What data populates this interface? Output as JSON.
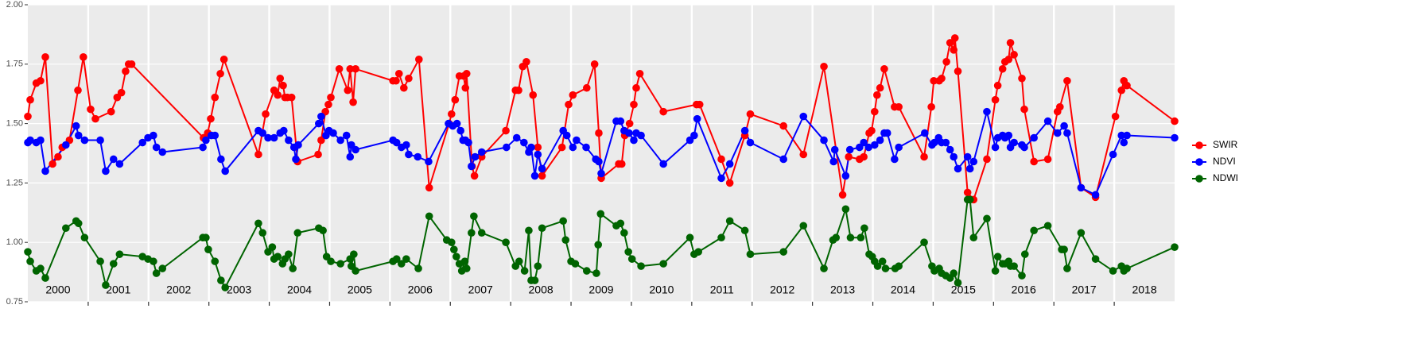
{
  "chart_data": {
    "type": "line",
    "legend": "right",
    "grid": true,
    "background": "#ebebeb",
    "xlim": [
      2000,
      2019
    ],
    "xticks": [
      {
        "value": 2000.5,
        "label": "2000"
      },
      {
        "value": 2001.5,
        "label": "2001"
      },
      {
        "value": 2002.5,
        "label": "2002"
      },
      {
        "value": 2003.5,
        "label": "2003"
      },
      {
        "value": 2004.5,
        "label": "2004"
      },
      {
        "value": 2005.5,
        "label": "2005"
      },
      {
        "value": 2006.5,
        "label": "2006"
      },
      {
        "value": 2007.5,
        "label": "2007"
      },
      {
        "value": 2008.5,
        "label": "2008"
      },
      {
        "value": 2009.5,
        "label": "2009"
      },
      {
        "value": 2010.5,
        "label": "2010"
      },
      {
        "value": 2011.5,
        "label": "2011"
      },
      {
        "value": 2012.5,
        "label": "2012"
      },
      {
        "value": 2013.5,
        "label": "2013"
      },
      {
        "value": 2014.5,
        "label": "2014"
      },
      {
        "value": 2015.5,
        "label": "2015"
      },
      {
        "value": 2016.5,
        "label": "2016"
      },
      {
        "value": 2017.5,
        "label": "2017"
      },
      {
        "value": 2018.5,
        "label": "2018"
      }
    ],
    "xgrid": [
      2001,
      2002,
      2003,
      2004,
      2005,
      2006,
      2007,
      2008,
      2009,
      2010,
      2011,
      2012,
      2013,
      2014,
      2015,
      2016,
      2017,
      2018
    ],
    "ylim": [
      0.75,
      2.0
    ],
    "yticks": [
      0.75,
      {
        "value": 1,
        "label": "1.00"
      },
      1.25,
      {
        "value": 1.5,
        "label": "1.50"
      },
      1.75,
      {
        "value": 2,
        "label": "2.00"
      }
    ],
    "series": [
      {
        "name": "SWIR",
        "color": "#ff0000",
        "x": [
          2000.0,
          2000.04,
          2000.14,
          2000.21,
          2000.29,
          2000.41,
          2000.5,
          2000.57,
          2000.69,
          2000.83,
          2000.92,
          2001.04,
          2001.12,
          2001.38,
          2001.48,
          2001.55,
          2001.62,
          2001.67,
          2001.72,
          2002.91,
          2002.98,
          2003.03,
          2003.1,
          2003.19,
          2003.25,
          2003.82,
          2003.94,
          2004.08,
          2004.14,
          2004.18,
          2004.23,
          2004.26,
          2004.3,
          2004.37,
          2004.47,
          2004.81,
          2004.86,
          2004.93,
          2004.98,
          2005.02,
          2005.16,
          2005.3,
          2005.34,
          2005.39,
          2005.43,
          2006.05,
          2006.1,
          2006.15,
          2006.23,
          2006.31,
          2006.48,
          2006.65,
          2006.98,
          2007.02,
          2007.08,
          2007.15,
          2007.22,
          2007.25,
          2007.27,
          2007.36,
          2007.4,
          2007.52,
          2007.92,
          2008.08,
          2008.13,
          2008.2,
          2008.26,
          2008.37,
          2008.45,
          2008.52,
          2008.85,
          2008.96,
          2009.03,
          2009.26,
          2009.39,
          2009.46,
          2009.5,
          2009.79,
          2009.84,
          2009.89,
          2009.97,
          2010.04,
          2010.08,
          2010.14,
          2010.53,
          2011.08,
          2011.13,
          2011.49,
          2011.63,
          2011.88,
          2011.97,
          2012.52,
          2012.85,
          2013.19,
          2013.5,
          2013.6,
          2013.78,
          2013.85,
          2013.94,
          2013.98,
          2014.03,
          2014.07,
          2014.12,
          2014.19,
          2014.36,
          2014.43,
          2014.85,
          2014.97,
          2015.01,
          2015.1,
          2015.14,
          2015.22,
          2015.28,
          2015.34,
          2015.36,
          2015.41,
          2015.57,
          2015.67,
          2015.89,
          2016.03,
          2016.07,
          2016.15,
          2016.19,
          2016.25,
          2016.28,
          2016.34,
          2016.47,
          2016.51,
          2016.67,
          2016.9,
          2017.06,
          2017.1,
          2017.22,
          2017.45,
          2017.69,
          2018.02,
          2018.12,
          2018.16,
          2018.21,
          2019.0
        ],
        "values": [
          1.53,
          1.6,
          1.67,
          1.68,
          1.78,
          1.33,
          1.36,
          1.4,
          1.43,
          1.64,
          1.78,
          1.56,
          1.52,
          1.55,
          1.61,
          1.63,
          1.72,
          1.75,
          1.75,
          1.44,
          1.46,
          1.52,
          1.61,
          1.71,
          1.77,
          1.37,
          1.54,
          1.64,
          1.62,
          1.69,
          1.66,
          1.61,
          1.61,
          1.61,
          1.34,
          1.37,
          1.43,
          1.55,
          1.58,
          1.61,
          1.73,
          1.64,
          1.73,
          1.59,
          1.73,
          1.68,
          1.68,
          1.71,
          1.65,
          1.69,
          1.77,
          1.23,
          1.5,
          1.54,
          1.6,
          1.7,
          1.7,
          1.65,
          1.71,
          1.32,
          1.28,
          1.36,
          1.47,
          1.64,
          1.64,
          1.74,
          1.76,
          1.62,
          1.4,
          1.28,
          1.4,
          1.58,
          1.62,
          1.65,
          1.75,
          1.46,
          1.27,
          1.33,
          1.33,
          1.45,
          1.5,
          1.58,
          1.65,
          1.71,
          1.55,
          1.58,
          1.58,
          1.35,
          1.25,
          1.45,
          1.54,
          1.49,
          1.37,
          1.74,
          1.2,
          1.36,
          1.35,
          1.36,
          1.46,
          1.47,
          1.55,
          1.62,
          1.65,
          1.73,
          1.57,
          1.57,
          1.36,
          1.57,
          1.68,
          1.68,
          1.69,
          1.76,
          1.84,
          1.81,
          1.86,
          1.72,
          1.21,
          1.18,
          1.35,
          1.6,
          1.66,
          1.73,
          1.76,
          1.77,
          1.84,
          1.79,
          1.69,
          1.56,
          1.34,
          1.35,
          1.55,
          1.57,
          1.68,
          1.23,
          1.19,
          1.53,
          1.64,
          1.68,
          1.66,
          1.51
        ]
      },
      {
        "name": "NDVI",
        "color": "#0000ff",
        "x": [
          2000.0,
          2000.04,
          2000.14,
          2000.21,
          2000.29,
          2000.63,
          2000.8,
          2000.84,
          2000.94,
          2001.2,
          2001.29,
          2001.42,
          2001.52,
          2001.9,
          2001.99,
          2002.08,
          2002.13,
          2002.23,
          2002.9,
          2002.95,
          2003.04,
          2003.1,
          2003.2,
          2003.27,
          2003.82,
          2003.89,
          2003.98,
          2004.08,
          2004.18,
          2004.24,
          2004.32,
          2004.41,
          2004.44,
          2004.48,
          2004.82,
          2004.86,
          2004.94,
          2004.99,
          2005.06,
          2005.18,
          2005.28,
          2005.34,
          2005.36,
          2005.43,
          2006.05,
          2006.11,
          2006.19,
          2006.27,
          2006.31,
          2006.46,
          2006.64,
          2006.97,
          2007.04,
          2007.11,
          2007.17,
          2007.21,
          2007.25,
          2007.3,
          2007.35,
          2007.41,
          2007.52,
          2007.93,
          2008.1,
          2008.22,
          2008.3,
          2008.34,
          2008.4,
          2008.45,
          2008.52,
          2008.87,
          2008.93,
          2009.03,
          2009.09,
          2009.25,
          2009.41,
          2009.46,
          2009.5,
          2009.75,
          2009.82,
          2009.88,
          2009.96,
          2010.04,
          2010.08,
          2010.16,
          2010.53,
          2010.97,
          2011.04,
          2011.09,
          2011.49,
          2011.63,
          2011.88,
          2011.97,
          2012.52,
          2012.85,
          2013.19,
          2013.35,
          2013.37,
          2013.55,
          2013.62,
          2013.78,
          2013.85,
          2013.93,
          2014.03,
          2014.12,
          2014.19,
          2014.24,
          2014.36,
          2014.43,
          2014.86,
          2014.98,
          2015.02,
          2015.09,
          2015.14,
          2015.21,
          2015.28,
          2015.34,
          2015.41,
          2015.57,
          2015.61,
          2015.67,
          2015.89,
          2016.03,
          2016.07,
          2016.15,
          2016.19,
          2016.25,
          2016.28,
          2016.34,
          2016.47,
          2016.51,
          2016.67,
          2016.9,
          2017.06,
          2017.17,
          2017.22,
          2017.45,
          2017.69,
          2017.98,
          2018.12,
          2018.16,
          2018.21,
          2019.0
        ],
        "values": [
          1.42,
          1.43,
          1.42,
          1.43,
          1.3,
          1.41,
          1.49,
          1.45,
          1.43,
          1.43,
          1.3,
          1.35,
          1.33,
          1.42,
          1.44,
          1.45,
          1.4,
          1.38,
          1.4,
          1.43,
          1.45,
          1.45,
          1.35,
          1.3,
          1.47,
          1.46,
          1.44,
          1.44,
          1.46,
          1.47,
          1.43,
          1.4,
          1.35,
          1.41,
          1.5,
          1.53,
          1.45,
          1.47,
          1.46,
          1.43,
          1.45,
          1.36,
          1.41,
          1.39,
          1.43,
          1.42,
          1.4,
          1.41,
          1.37,
          1.36,
          1.34,
          1.5,
          1.49,
          1.5,
          1.47,
          1.43,
          1.43,
          1.42,
          1.32,
          1.36,
          1.38,
          1.4,
          1.44,
          1.42,
          1.38,
          1.4,
          1.28,
          1.37,
          1.31,
          1.47,
          1.45,
          1.4,
          1.43,
          1.4,
          1.35,
          1.34,
          1.29,
          1.51,
          1.51,
          1.47,
          1.46,
          1.43,
          1.46,
          1.45,
          1.33,
          1.43,
          1.45,
          1.52,
          1.27,
          1.33,
          1.47,
          1.42,
          1.35,
          1.53,
          1.43,
          1.34,
          1.39,
          1.28,
          1.39,
          1.4,
          1.42,
          1.4,
          1.41,
          1.43,
          1.46,
          1.46,
          1.35,
          1.4,
          1.46,
          1.41,
          1.42,
          1.44,
          1.42,
          1.42,
          1.39,
          1.36,
          1.31,
          1.36,
          1.31,
          1.34,
          1.55,
          1.4,
          1.44,
          1.45,
          1.44,
          1.45,
          1.4,
          1.42,
          1.41,
          1.4,
          1.44,
          1.51,
          1.46,
          1.49,
          1.46,
          1.23,
          1.2,
          1.37,
          1.45,
          1.42,
          1.45,
          1.44
        ]
      },
      {
        "name": "NDWI",
        "color": "#006400",
        "x": [
          2000.0,
          2000.04,
          2000.14,
          2000.21,
          2000.29,
          2000.63,
          2000.8,
          2000.84,
          2000.94,
          2001.2,
          2001.29,
          2001.42,
          2001.52,
          2001.9,
          2001.99,
          2002.08,
          2002.13,
          2002.23,
          2002.9,
          2002.95,
          2002.99,
          2003.1,
          2003.2,
          2003.27,
          2003.82,
          2003.89,
          2003.98,
          2004.05,
          2004.08,
          2004.14,
          2004.22,
          2004.26,
          2004.32,
          2004.39,
          2004.47,
          2004.82,
          2004.89,
          2004.95,
          2005.02,
          2005.18,
          2005.34,
          2005.36,
          2005.4,
          2005.43,
          2006.05,
          2006.11,
          2006.19,
          2006.27,
          2006.47,
          2006.65,
          2006.94,
          2007.02,
          2007.06,
          2007.1,
          2007.15,
          2007.19,
          2007.24,
          2007.27,
          2007.35,
          2007.39,
          2007.52,
          2007.92,
          2008.08,
          2008.14,
          2008.23,
          2008.3,
          2008.34,
          2008.4,
          2008.45,
          2008.52,
          2008.87,
          2008.91,
          2009.0,
          2009.07,
          2009.26,
          2009.42,
          2009.45,
          2009.49,
          2009.75,
          2009.82,
          2009.88,
          2009.95,
          2010.01,
          2010.16,
          2010.53,
          2010.97,
          2011.04,
          2011.11,
          2011.49,
          2011.63,
          2011.88,
          2011.97,
          2012.52,
          2012.85,
          2013.19,
          2013.34,
          2013.39,
          2013.55,
          2013.63,
          2013.8,
          2013.86,
          2013.94,
          2013.99,
          2014.03,
          2014.08,
          2014.16,
          2014.21,
          2014.37,
          2014.43,
          2014.85,
          2014.98,
          2015.02,
          2015.1,
          2015.14,
          2015.21,
          2015.28,
          2015.34,
          2015.41,
          2015.57,
          2015.61,
          2015.67,
          2015.89,
          2016.03,
          2016.07,
          2016.15,
          2016.19,
          2016.25,
          2016.28,
          2016.34,
          2016.47,
          2016.52,
          2016.67,
          2016.9,
          2017.13,
          2017.17,
          2017.22,
          2017.45,
          2017.69,
          2017.98,
          2018.12,
          2018.16,
          2018.21,
          2019.0
        ],
        "values": [
          0.96,
          0.92,
          0.88,
          0.89,
          0.85,
          1.06,
          1.09,
          1.08,
          1.02,
          0.92,
          0.82,
          0.91,
          0.95,
          0.94,
          0.93,
          0.92,
          0.87,
          0.89,
          1.02,
          1.02,
          0.97,
          0.92,
          0.84,
          0.81,
          1.08,
          1.04,
          0.96,
          0.98,
          0.93,
          0.94,
          0.91,
          0.93,
          0.95,
          0.89,
          1.04,
          1.06,
          1.05,
          0.94,
          0.92,
          0.91,
          0.93,
          0.9,
          0.95,
          0.88,
          0.92,
          0.93,
          0.91,
          0.93,
          0.89,
          1.11,
          1.01,
          1.0,
          0.97,
          0.94,
          0.91,
          0.88,
          0.92,
          0.89,
          1.04,
          1.11,
          1.04,
          1.0,
          0.9,
          0.92,
          0.88,
          1.05,
          0.84,
          0.84,
          0.9,
          1.06,
          1.09,
          1.01,
          0.92,
          0.91,
          0.88,
          0.87,
          0.99,
          1.12,
          1.07,
          1.08,
          1.04,
          0.96,
          0.93,
          0.9,
          0.91,
          1.02,
          0.95,
          0.96,
          1.02,
          1.09,
          1.05,
          0.95,
          0.96,
          1.07,
          0.89,
          1.01,
          1.02,
          1.14,
          1.02,
          1.02,
          1.06,
          0.95,
          0.94,
          0.92,
          0.9,
          0.92,
          0.89,
          0.89,
          0.9,
          1.0,
          0.9,
          0.88,
          0.89,
          0.87,
          0.86,
          0.85,
          0.87,
          0.83,
          1.18,
          1.18,
          1.02,
          1.1,
          0.88,
          0.94,
          0.91,
          0.91,
          0.92,
          0.9,
          0.9,
          0.86,
          0.95,
          1.05,
          1.07,
          0.97,
          0.97,
          0.89,
          1.04,
          0.93,
          0.88,
          0.9,
          0.88,
          0.89,
          0.98
        ]
      }
    ]
  }
}
